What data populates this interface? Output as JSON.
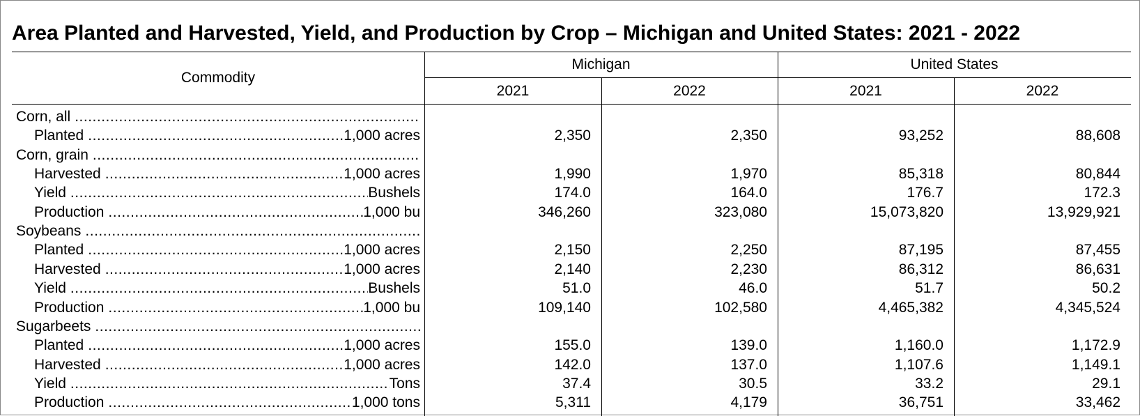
{
  "title": "Area Planted and Harvested, Yield, and Production by Crop – Michigan and United States: 2021 - 2022",
  "header": {
    "commodity": "Commodity",
    "groups": [
      "Michigan",
      "United States"
    ],
    "years": [
      "2021",
      "2022",
      "2021",
      "2022"
    ]
  },
  "table": {
    "rows": [
      {
        "label": "Corn, all"
      },
      {
        "label": "Planted",
        "unit": "1,000 acres",
        "values": [
          "2,350",
          "2,350",
          "93,252",
          "88,608"
        ]
      },
      {
        "label": "Corn, grain"
      },
      {
        "label": "Harvested",
        "unit": "1,000 acres",
        "values": [
          "1,990",
          "1,970",
          "85,318",
          "80,844"
        ]
      },
      {
        "label": "Yield",
        "unit": "Bushels",
        "values": [
          "174.0",
          "164.0",
          "176.7",
          "172.3"
        ]
      },
      {
        "label": "Production",
        "unit": "1,000 bu",
        "values": [
          "346,260",
          "323,080",
          "15,073,820",
          "13,929,921"
        ]
      },
      {
        "label": "Soybeans"
      },
      {
        "label": "Planted",
        "unit": "1,000 acres",
        "values": [
          "2,150",
          "2,250",
          "87,195",
          "87,455"
        ]
      },
      {
        "label": "Harvested",
        "unit": "1,000 acres",
        "values": [
          "2,140",
          "2,230",
          "86,312",
          "86,631"
        ]
      },
      {
        "label": "Yield",
        "unit": "Bushels",
        "values": [
          "51.0",
          "46.0",
          "51.7",
          "50.2"
        ]
      },
      {
        "label": "Production",
        "unit": "1,000 bu",
        "values": [
          "109,140",
          "102,580",
          "4,465,382",
          "4,345,524"
        ]
      },
      {
        "label": "Sugarbeets"
      },
      {
        "label": "Planted",
        "unit": "1,000 acres",
        "values": [
          "155.0",
          "139.0",
          "1,160.0",
          "1,172.9"
        ]
      },
      {
        "label": "Harvested",
        "unit": "1,000 acres",
        "values": [
          "142.0",
          "137.0",
          "1,107.6",
          "1,149.1"
        ]
      },
      {
        "label": "Yield",
        "unit": "Tons",
        "values": [
          "37.4",
          "30.5",
          "33.2",
          "29.1"
        ]
      },
      {
        "label": "Production",
        "unit": "1,000 tons",
        "values": [
          "5,311",
          "4,179",
          "36,751",
          "33,462"
        ]
      }
    ]
  }
}
